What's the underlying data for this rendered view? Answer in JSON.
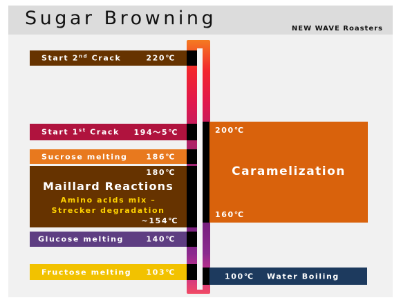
{
  "header": {
    "title": "Sugar Browning",
    "brand": "NEW WAVE Roasters"
  },
  "colors": {
    "second_crack": "#663300",
    "first_crack": "#b0133e",
    "sucrose": "#e8791e",
    "maillard": "#663300",
    "maillard_sub": "#ffd200",
    "glucose": "#5e3e82",
    "fructose": "#f2c200",
    "caramel": "#d9620c",
    "water_boiling": "#1d3a5e"
  },
  "stages": {
    "second_crack": {
      "label": "Start 2",
      "sup": "nd",
      "label_end": " Crack",
      "temp": "220℃"
    },
    "first_crack": {
      "label": "Start 1",
      "sup": "st",
      "label_end": " Crack",
      "temp": "194～5℃"
    },
    "sucrose": {
      "label": "Sucrose melting",
      "temp": "186℃"
    },
    "maillard": {
      "temp_top": "180℃",
      "title": "Maillard Reactions",
      "sub1": "Amino acids mix –",
      "sub2": "Strecker degradation",
      "temp_bottom": "~154℃"
    },
    "glucose": {
      "label": "Glucose melting",
      "temp": "140℃"
    },
    "fructose": {
      "label": "Fructose melting",
      "temp": "103℃"
    }
  },
  "caramelization": {
    "label": "Caramelization",
    "temp_top": "200℃",
    "temp_bottom": "160℃"
  },
  "water_boiling": {
    "temp": "100℃",
    "label": "Water Boiling"
  }
}
